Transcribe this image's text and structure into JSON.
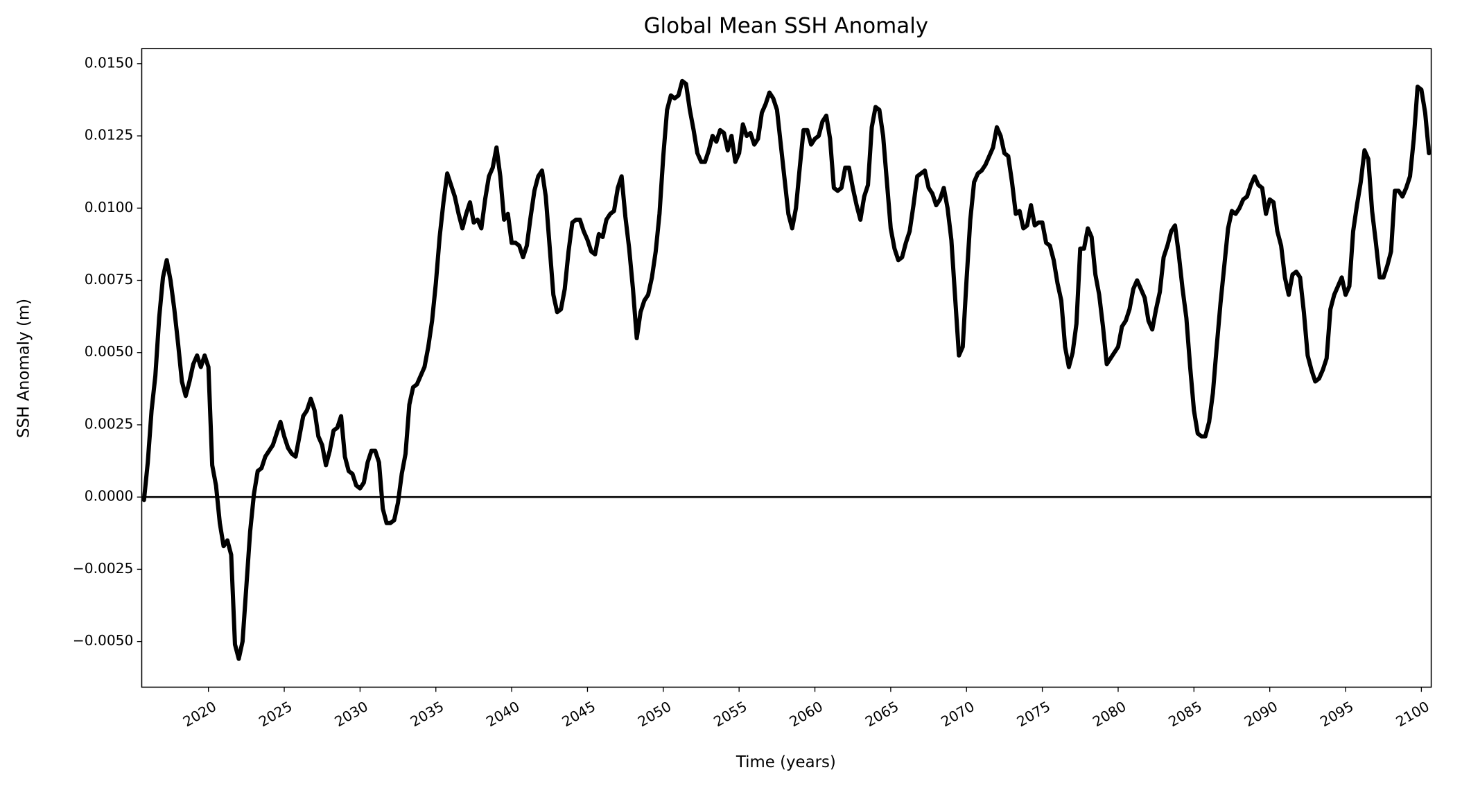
{
  "chart_data": {
    "type": "line",
    "title": "Global Mean SSH Anomaly",
    "xlabel": "Time (years)",
    "ylabel": "SSH Anomaly (m)",
    "color": "#000000",
    "hline": 0,
    "xlim": [
      2015.6,
      2100.65
    ],
    "ylim": [
      -0.00658,
      0.01552
    ],
    "xticks": [
      2020,
      2025,
      2030,
      2035,
      2040,
      2045,
      2050,
      2055,
      2060,
      2065,
      2070,
      2075,
      2080,
      2085,
      2090,
      2095,
      2100
    ],
    "yticks": [
      {
        "value": -0.005,
        "label": "−0.0050"
      },
      {
        "value": -0.0025,
        "label": "−0.0025"
      },
      {
        "value": 0,
        "label": "0.0000"
      },
      {
        "value": 0.0025,
        "label": "0.0025"
      },
      {
        "value": 0.005,
        "label": "0.0050"
      },
      {
        "value": 0.0075,
        "label": "0.0075"
      },
      {
        "value": 0.01,
        "label": "0.0100"
      },
      {
        "value": 0.0125,
        "label": "0.0125"
      },
      {
        "value": 0.015,
        "label": "0.0150"
      }
    ],
    "x": [
      2015.75,
      2016,
      2016.25,
      2016.5,
      2016.75,
      2017,
      2017.25,
      2017.5,
      2017.75,
      2018,
      2018.25,
      2018.5,
      2018.75,
      2019,
      2019.25,
      2019.5,
      2019.75,
      2020,
      2020.25,
      2020.5,
      2020.75,
      2021,
      2021.25,
      2021.5,
      2021.75,
      2022,
      2022.25,
      2022.5,
      2022.75,
      2023,
      2023.25,
      2023.5,
      2023.75,
      2024,
      2024.25,
      2024.5,
      2024.75,
      2025,
      2025.25,
      2025.5,
      2025.75,
      2026,
      2026.25,
      2026.5,
      2026.75,
      2027,
      2027.25,
      2027.5,
      2027.75,
      2028,
      2028.25,
      2028.5,
      2028.75,
      2029,
      2029.25,
      2029.5,
      2029.75,
      2030,
      2030.25,
      2030.5,
      2030.75,
      2031,
      2031.25,
      2031.5,
      2031.75,
      2032,
      2032.25,
      2032.5,
      2032.75,
      2033,
      2033.25,
      2033.5,
      2033.75,
      2034,
      2034.25,
      2034.5,
      2034.75,
      2035,
      2035.25,
      2035.5,
      2035.75,
      2036,
      2036.25,
      2036.5,
      2036.75,
      2037,
      2037.25,
      2037.5,
      2037.75,
      2038,
      2038.25,
      2038.5,
      2038.75,
      2039,
      2039.25,
      2039.5,
      2039.75,
      2040,
      2040.25,
      2040.5,
      2040.75,
      2041,
      2041.25,
      2041.5,
      2041.75,
      2042,
      2042.25,
      2042.5,
      2042.75,
      2043,
      2043.25,
      2043.5,
      2043.75,
      2044,
      2044.25,
      2044.5,
      2044.75,
      2045,
      2045.25,
      2045.5,
      2045.75,
      2046,
      2046.25,
      2046.5,
      2046.75,
      2047,
      2047.25,
      2047.5,
      2047.75,
      2048,
      2048.25,
      2048.5,
      2048.75,
      2049,
      2049.25,
      2049.5,
      2049.75,
      2050,
      2050.25,
      2050.5,
      2050.75,
      2051,
      2051.25,
      2051.5,
      2051.75,
      2052,
      2052.25,
      2052.5,
      2052.75,
      2053,
      2053.25,
      2053.5,
      2053.75,
      2054,
      2054.25,
      2054.5,
      2054.75,
      2055,
      2055.25,
      2055.5,
      2055.75,
      2056,
      2056.25,
      2056.5,
      2056.75,
      2057,
      2057.25,
      2057.5,
      2057.75,
      2058,
      2058.25,
      2058.5,
      2058.75,
      2059,
      2059.25,
      2059.5,
      2059.75,
      2060,
      2060.25,
      2060.5,
      2060.75,
      2061,
      2061.25,
      2061.5,
      2061.75,
      2062,
      2062.25,
      2062.5,
      2062.75,
      2063,
      2063.25,
      2063.5,
      2063.75,
      2064,
      2064.25,
      2064.5,
      2064.75,
      2065,
      2065.25,
      2065.5,
      2065.75,
      2066,
      2066.25,
      2066.5,
      2066.75,
      2067,
      2067.25,
      2067.5,
      2067.75,
      2068,
      2068.25,
      2068.5,
      2068.75,
      2069,
      2069.25,
      2069.5,
      2069.75,
      2070,
      2070.25,
      2070.5,
      2070.75,
      2071,
      2071.25,
      2071.5,
      2071.75,
      2072,
      2072.25,
      2072.5,
      2072.75,
      2073,
      2073.25,
      2073.5,
      2073.75,
      2074,
      2074.25,
      2074.5,
      2074.75,
      2075,
      2075.25,
      2075.5,
      2075.75,
      2076,
      2076.25,
      2076.5,
      2076.75,
      2077,
      2077.25,
      2077.5,
      2077.75,
      2078,
      2078.25,
      2078.5,
      2078.75,
      2079,
      2079.25,
      2079.5,
      2079.75,
      2080,
      2080.25,
      2080.5,
      2080.75,
      2081,
      2081.25,
      2081.5,
      2081.75,
      2082,
      2082.25,
      2082.5,
      2082.75,
      2083,
      2083.25,
      2083.5,
      2083.75,
      2084,
      2084.25,
      2084.5,
      2084.75,
      2085,
      2085.25,
      2085.5,
      2085.75,
      2086,
      2086.25,
      2086.5,
      2086.75,
      2087,
      2087.25,
      2087.5,
      2087.75,
      2088,
      2088.25,
      2088.5,
      2088.75,
      2089,
      2089.25,
      2089.5,
      2089.75,
      2090,
      2090.25,
      2090.5,
      2090.75,
      2091,
      2091.25,
      2091.5,
      2091.75,
      2092,
      2092.25,
      2092.5,
      2092.75,
      2093,
      2093.25,
      2093.5,
      2093.75,
      2094,
      2094.25,
      2094.5,
      2094.75,
      2095,
      2095.25,
      2095.5,
      2095.75,
      2096,
      2096.25,
      2096.5,
      2096.75,
      2097,
      2097.25,
      2097.5,
      2097.75,
      2098,
      2098.25,
      2098.5,
      2098.75,
      2099,
      2099.25,
      2099.5,
      2099.75,
      2100,
      2100.25,
      2100.5
    ],
    "values": [
      -0.0001,
      0.0012,
      0.003,
      0.0042,
      0.0062,
      0.0076,
      0.0082,
      0.0075,
      0.0065,
      0.0053,
      0.004,
      0.0035,
      0.004,
      0.0046,
      0.0049,
      0.0045,
      0.0049,
      0.0045,
      0.0011,
      0.0004,
      -0.0009,
      -0.0017,
      -0.0015,
      -0.002,
      -0.0051,
      -0.0056,
      -0.005,
      -0.0031,
      -0.0012,
      0.0001,
      0.0009,
      0.001,
      0.0014,
      0.0016,
      0.0018,
      0.0022,
      0.0026,
      0.0021,
      0.0017,
      0.0015,
      0.0014,
      0.0021,
      0.0028,
      0.003,
      0.0034,
      0.003,
      0.0021,
      0.0018,
      0.0011,
      0.0016,
      0.0023,
      0.0024,
      0.0028,
      0.0014,
      0.0009,
      0.0008,
      0.0004,
      0.0003,
      0.0005,
      0.0012,
      0.0016,
      0.0016,
      0.0012,
      -0.0004,
      -0.0009,
      -0.0009,
      -0.0008,
      -0.0002,
      0.0008,
      0.0015,
      0.0032,
      0.0038,
      0.0039,
      0.0042,
      0.0045,
      0.0052,
      0.0061,
      0.0074,
      0.009,
      0.0102,
      0.0112,
      0.0108,
      0.0104,
      0.0098,
      0.0093,
      0.0098,
      0.0102,
      0.0095,
      0.0096,
      0.0093,
      0.0103,
      0.0111,
      0.0114,
      0.0121,
      0.0111,
      0.0096,
      0.0098,
      0.0088,
      0.0088,
      0.0087,
      0.0083,
      0.0087,
      0.0097,
      0.0106,
      0.0111,
      0.0113,
      0.0104,
      0.0087,
      0.007,
      0.0064,
      0.0065,
      0.0072,
      0.0085,
      0.0095,
      0.0096,
      0.0096,
      0.0092,
      0.0089,
      0.0085,
      0.0084,
      0.0091,
      0.009,
      0.0096,
      0.0098,
      0.0099,
      0.0107,
      0.0111,
      0.0097,
      0.0086,
      0.0072,
      0.0055,
      0.0064,
      0.0068,
      0.007,
      0.0076,
      0.0085,
      0.0098,
      0.0118,
      0.0134,
      0.0139,
      0.0138,
      0.0139,
      0.0144,
      0.0143,
      0.0134,
      0.0127,
      0.0119,
      0.0116,
      0.0116,
      0.012,
      0.0125,
      0.0123,
      0.0127,
      0.0126,
      0.012,
      0.0125,
      0.0116,
      0.0119,
      0.0129,
      0.0125,
      0.0126,
      0.0122,
      0.0124,
      0.0133,
      0.0136,
      0.014,
      0.0138,
      0.0134,
      0.0122,
      0.011,
      0.0098,
      0.0093,
      0.01,
      0.0114,
      0.0127,
      0.0127,
      0.0122,
      0.0124,
      0.0125,
      0.013,
      0.0132,
      0.0124,
      0.0107,
      0.0106,
      0.0107,
      0.0114,
      0.0114,
      0.0107,
      0.0101,
      0.0096,
      0.0104,
      0.0108,
      0.0128,
      0.0135,
      0.0134,
      0.0125,
      0.0109,
      0.0093,
      0.0086,
      0.0082,
      0.0083,
      0.0088,
      0.0092,
      0.0101,
      0.0111,
      0.0112,
      0.0113,
      0.0107,
      0.0105,
      0.0101,
      0.0103,
      0.0107,
      0.01,
      0.0089,
      0.0069,
      0.0049,
      0.0052,
      0.0075,
      0.0096,
      0.0109,
      0.0112,
      0.0113,
      0.0115,
      0.0118,
      0.0121,
      0.0128,
      0.0125,
      0.0119,
      0.0118,
      0.0109,
      0.0098,
      0.0099,
      0.0093,
      0.0094,
      0.0101,
      0.0094,
      0.0095,
      0.0095,
      0.0088,
      0.0087,
      0.0082,
      0.0074,
      0.0068,
      0.0052,
      0.0045,
      0.005,
      0.006,
      0.0086,
      0.0086,
      0.0093,
      0.009,
      0.0077,
      0.007,
      0.0059,
      0.0046,
      0.0048,
      0.005,
      0.0052,
      0.0059,
      0.0061,
      0.0065,
      0.0072,
      0.0075,
      0.0072,
      0.0069,
      0.0061,
      0.0058,
      0.0065,
      0.0071,
      0.0083,
      0.0087,
      0.0092,
      0.0094,
      0.0084,
      0.0072,
      0.0062,
      0.0045,
      0.003,
      0.0022,
      0.0021,
      0.0021,
      0.0026,
      0.0036,
      0.0052,
      0.0067,
      0.008,
      0.0093,
      0.0099,
      0.0098,
      0.01,
      0.0103,
      0.0104,
      0.0108,
      0.0111,
      0.0108,
      0.0107,
      0.0098,
      0.0103,
      0.0102,
      0.0092,
      0.0087,
      0.0076,
      0.007,
      0.0077,
      0.0078,
      0.0076,
      0.0064,
      0.0049,
      0.0044,
      0.004,
      0.0041,
      0.0044,
      0.0048,
      0.0065,
      0.007,
      0.0073,
      0.0076,
      0.007,
      0.0073,
      0.0092,
      0.0101,
      0.0109,
      0.012,
      0.0117,
      0.0099,
      0.0088,
      0.0076,
      0.0076,
      0.008,
      0.0085,
      0.0106,
      0.0106,
      0.0104,
      0.0107,
      0.0111,
      0.0124,
      0.0142,
      0.0141,
      0.0133,
      0.0119
    ]
  }
}
